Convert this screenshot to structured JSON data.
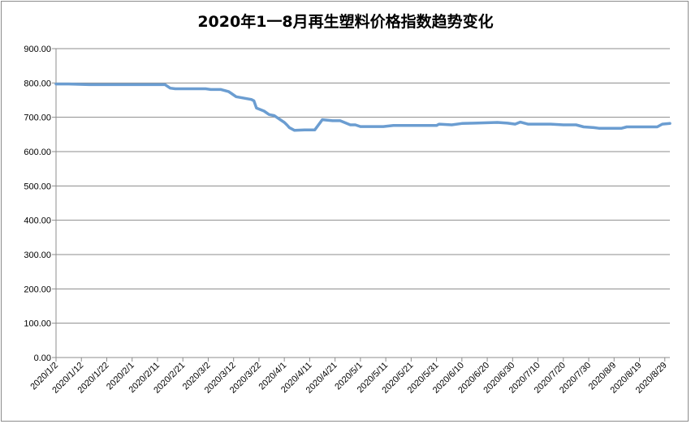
{
  "chart_data": {
    "type": "line",
    "title": "2020年1一8月再生塑料价格指数趋势变化",
    "ylim": [
      0,
      900
    ],
    "yticks": [
      "900.00",
      "800.00",
      "700.00",
      "600.00",
      "500.00",
      "400.00",
      "300.00",
      "200.00",
      "100.00",
      "0.00"
    ],
    "ytick_values": [
      900,
      800,
      700,
      600,
      500,
      400,
      300,
      200,
      100,
      0
    ],
    "x_range": [
      "2020/1/2",
      "2020/8/31"
    ],
    "xticks": [
      "2020/1/2",
      "2020/1/12",
      "2020/1/22",
      "2020/2/1",
      "2020/2/11",
      "2020/2/21",
      "2020/3/2",
      "2020/3/12",
      "2020/3/22",
      "2020/4/1",
      "2020/4/11",
      "2020/4/21",
      "2020/5/1",
      "2020/5/11",
      "2020/5/21",
      "2020/5/31",
      "2020/6/10",
      "2020/6/20",
      "2020/6/30",
      "2020/7/10",
      "2020/7/20",
      "2020/7/30",
      "2020/8/9",
      "2020/8/19",
      "2020/8/29"
    ],
    "grid": true,
    "legend": "none",
    "line_color": "#6b9dd1",
    "series": [
      {
        "x": [
          "2020/1/2",
          "2020/1/7",
          "2020/1/15",
          "2020/2/1",
          "2020/2/14",
          "2020/2/16",
          "2020/2/18",
          "2020/3/1",
          "2020/3/3",
          "2020/3/7",
          "2020/3/10",
          "2020/3/11",
          "2020/3/13",
          "2020/3/19",
          "2020/3/20",
          "2020/3/21",
          "2020/3/24",
          "2020/3/26",
          "2020/3/28",
          "2020/3/30",
          "2020/4/1",
          "2020/4/2",
          "2020/4/3",
          "2020/4/5",
          "2020/4/9",
          "2020/4/13",
          "2020/4/16",
          "2020/4/20",
          "2020/4/23",
          "2020/4/27",
          "2020/4/29",
          "2020/5/1",
          "2020/5/10",
          "2020/5/14",
          "2020/5/31",
          "2020/6/1",
          "2020/6/6",
          "2020/6/10",
          "2020/6/15",
          "2020/6/24",
          "2020/6/28",
          "2020/7/1",
          "2020/7/3",
          "2020/7/6",
          "2020/7/15",
          "2020/7/20",
          "2020/7/25",
          "2020/7/28",
          "2020/8/1",
          "2020/8/3",
          "2020/8/12",
          "2020/8/14",
          "2020/8/26",
          "2020/8/28",
          "2020/8/31"
        ],
        "values": [
          797,
          797,
          795,
          795,
          795,
          785,
          783,
          783,
          781,
          781,
          775,
          770,
          760,
          752,
          748,
          727,
          718,
          708,
          705,
          695,
          685,
          678,
          670,
          662,
          663,
          663,
          693,
          690,
          690,
          678,
          678,
          673,
          673,
          676,
          676,
          680,
          678,
          682,
          683,
          685,
          683,
          680,
          686,
          680,
          680,
          678,
          678,
          672,
          670,
          668,
          668,
          672,
          672,
          680,
          682
        ]
      }
    ]
  }
}
